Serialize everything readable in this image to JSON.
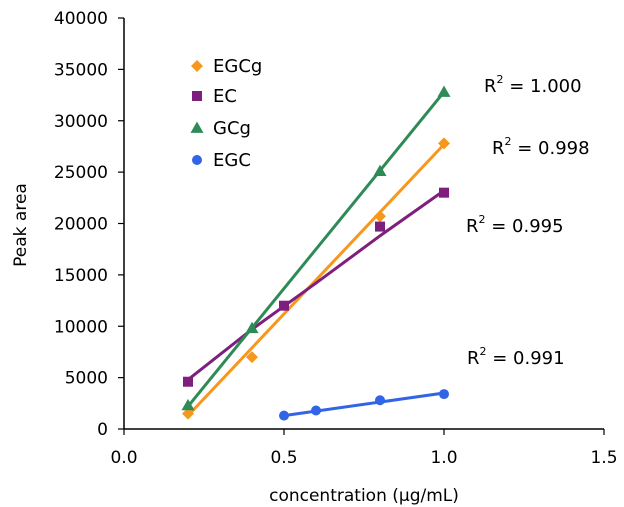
{
  "chart_data": {
    "type": "scatter",
    "xlabel": "concentration (μg/mL)",
    "ylabel": "Peak area",
    "xlim": [
      0.0,
      1.5
    ],
    "ylim": [
      0,
      40000
    ],
    "x_ticks": [
      0.0,
      0.5,
      1.0,
      1.5
    ],
    "x_tick_labels": [
      "0.0",
      "0.5",
      "1.0",
      "1.5"
    ],
    "y_ticks": [
      0,
      5000,
      10000,
      15000,
      20000,
      25000,
      30000,
      35000,
      40000
    ],
    "y_tick_labels": [
      "0",
      "5000",
      "10000",
      "15000",
      "20000",
      "25000",
      "30000",
      "35000",
      "40000"
    ],
    "grid": false,
    "legend_position": "top-left",
    "series": [
      {
        "name": "EGCg",
        "marker": "diamond",
        "color": "#F7981D",
        "x": [
          0.2,
          0.4,
          0.8,
          1.0
        ],
        "y": [
          1500,
          7000,
          20700,
          27800
        ],
        "fit": [
          [
            0.2,
            1300
          ],
          [
            1.0,
            27700
          ]
        ],
        "r2_label": "R",
        "r2_sup": "2",
        "r2_value": " = 0.998"
      },
      {
        "name": "EC",
        "marker": "square",
        "color": "#7E1F7E",
        "x": [
          0.2,
          0.5,
          0.8,
          1.0
        ],
        "y": [
          4600,
          12000,
          19700,
          23000
        ],
        "fit": [
          [
            0.2,
            4800
          ],
          [
            0.4,
            9700
          ],
          [
            0.6,
            14200
          ],
          [
            0.8,
            18800
          ],
          [
            1.0,
            23200
          ]
        ],
        "r2_label": "R",
        "r2_sup": "2",
        "r2_value": " = 0.995"
      },
      {
        "name": "GCg",
        "marker": "triangle",
        "color": "#2E8B57",
        "x": [
          0.2,
          0.4,
          0.8,
          1.0
        ],
        "y": [
          2300,
          9800,
          25100,
          32800
        ],
        "fit": [
          [
            0.2,
            2200
          ],
          [
            1.0,
            32800
          ]
        ],
        "r2_label": "R",
        "r2_sup": "2",
        "r2_value": " = 1.000"
      },
      {
        "name": "EGC",
        "marker": "circle",
        "color": "#3264E8",
        "x": [
          0.5,
          0.6,
          0.8,
          1.0
        ],
        "y": [
          1300,
          1800,
          2800,
          3400
        ],
        "fit": [
          [
            0.5,
            1300
          ],
          [
            1.0,
            3500
          ]
        ],
        "r2_label": "R",
        "r2_sup": "2",
        "r2_value": " = 0.991"
      }
    ]
  }
}
